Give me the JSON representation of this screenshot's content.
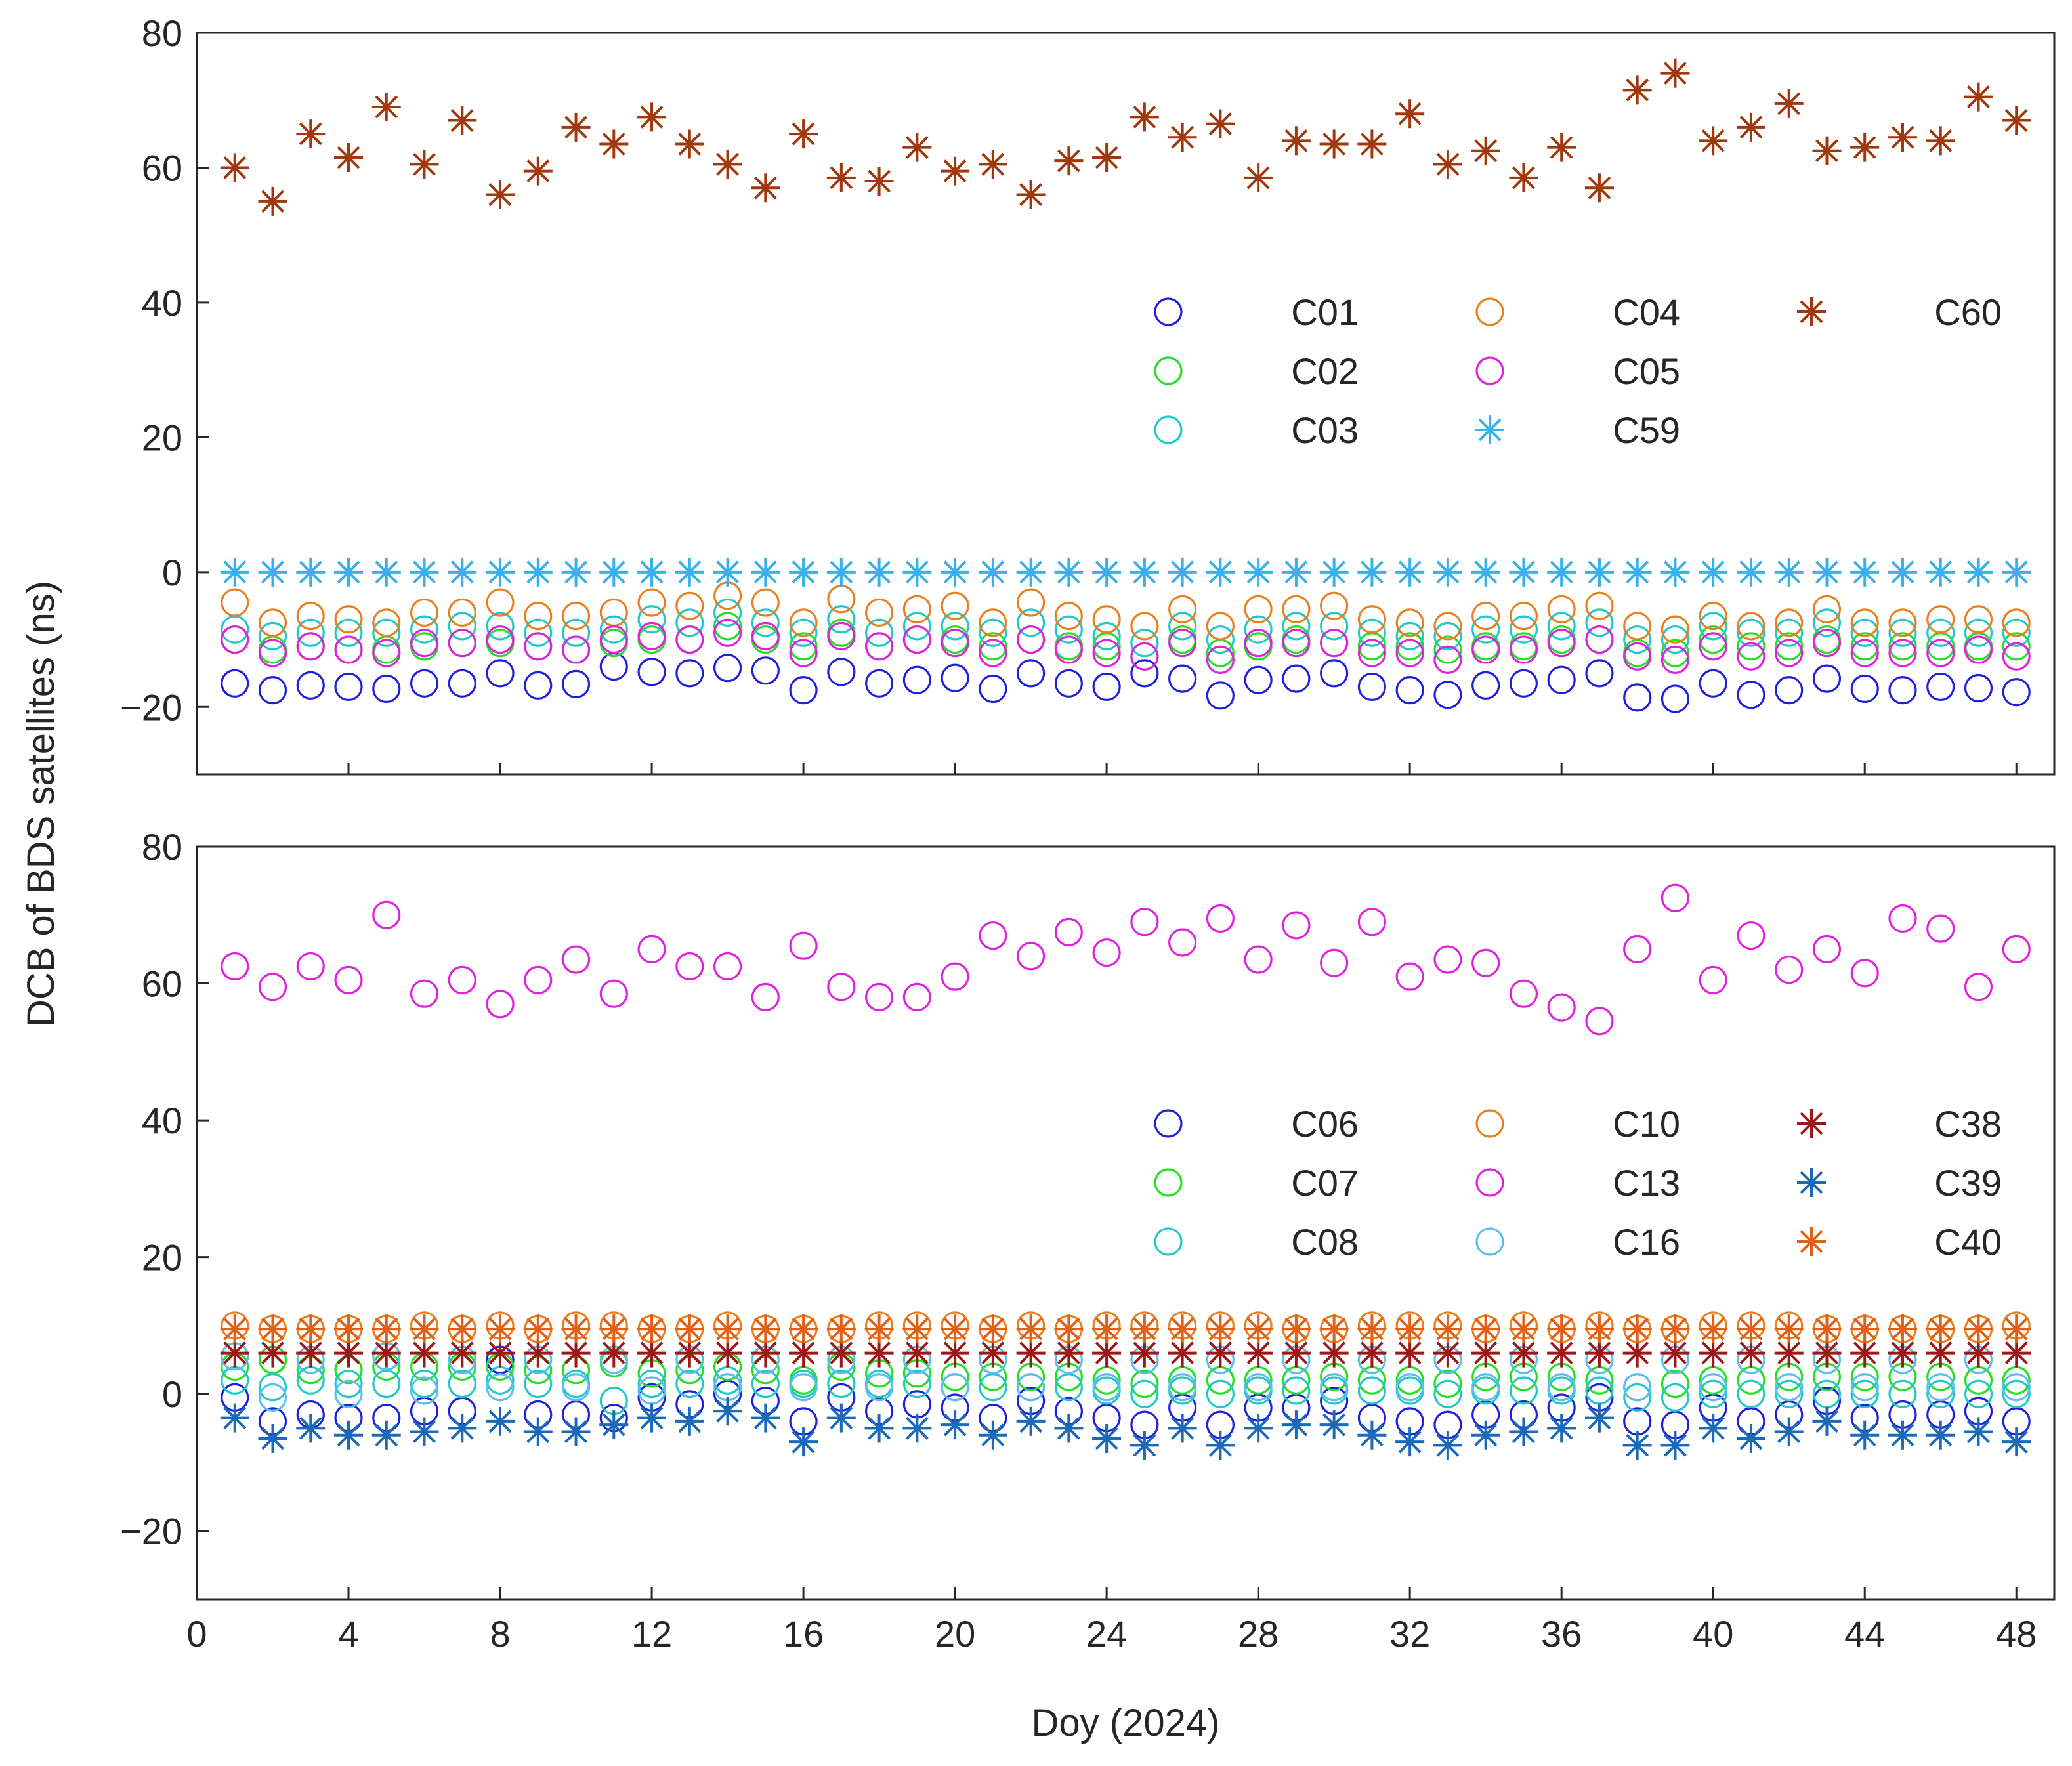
{
  "figure": {
    "ylabel": "DCB of BDS satellites (ns)",
    "xlabel": "Doy (2024)"
  },
  "chart_data": [
    {
      "type": "scatter",
      "panel": "top",
      "xlim": [
        0,
        49
      ],
      "ylim": [
        -30,
        80
      ],
      "xticks": [
        0,
        4,
        8,
        12,
        16,
        20,
        24,
        28,
        32,
        36,
        40,
        44,
        48
      ],
      "yticks": [
        -20,
        0,
        20,
        40,
        60,
        80
      ],
      "show_xtick_labels": false,
      "grid": false,
      "legend_position": "center-right",
      "x": [
        1,
        2,
        3,
        4,
        5,
        6,
        7,
        8,
        9,
        10,
        11,
        12,
        13,
        14,
        15,
        16,
        17,
        18,
        19,
        20,
        21,
        22,
        23,
        24,
        25,
        26,
        27,
        28,
        29,
        30,
        31,
        32,
        33,
        34,
        35,
        36,
        37,
        38,
        39,
        40,
        41,
        42,
        43,
        44,
        45,
        46,
        47,
        48
      ],
      "series": [
        {
          "name": "C01",
          "marker": "circle",
          "color": "#1f1fe0",
          "values": [
            -16.5,
            -17.5,
            -16.8,
            -17,
            -17.3,
            -16.5,
            -16.5,
            -15,
            -16.8,
            -16.6,
            -14,
            -14.8,
            -15,
            -14.2,
            -14.6,
            -17.5,
            -14.8,
            -16.5,
            -16,
            -15.7,
            -17.3,
            -15,
            -16.5,
            -17,
            -15,
            -15.8,
            -18.3,
            -16,
            -15.8,
            -15,
            -17,
            -17.5,
            -18.2,
            -16.8,
            -16.5,
            -16,
            -15,
            -18.6,
            -18.8,
            -16.5,
            -18.2,
            -17.5,
            -15.8,
            -17.3,
            -17.5,
            -17,
            -17.2,
            -17.8
          ]
        },
        {
          "name": "C02",
          "marker": "circle",
          "color": "#22e022",
          "values": [
            -10,
            -11.5,
            -11,
            -11.5,
            -11.5,
            -11,
            -10.5,
            -10.5,
            -11,
            -11.5,
            -10.5,
            -10,
            -10,
            -8,
            -10,
            -11,
            -9,
            -11,
            -10,
            -10,
            -11,
            -10,
            -11,
            -11,
            -12.5,
            -10,
            -12,
            -11,
            -10,
            -10.5,
            -11,
            -11,
            -11.5,
            -11,
            -11,
            -10,
            -10,
            -12,
            -12,
            -10,
            -11,
            -11,
            -10,
            -11,
            -11,
            -11,
            -11,
            -11
          ]
        },
        {
          "name": "C03",
          "marker": "circle",
          "color": "#20c8c8",
          "values": [
            -8.5,
            -9.5,
            -9,
            -9,
            -9,
            -8.5,
            -8,
            -8,
            -9,
            -9,
            -8.5,
            -7,
            -7.5,
            -6,
            -7.5,
            -9,
            -7,
            -9,
            -8,
            -8,
            -9,
            -7.5,
            -8.5,
            -9.5,
            -10.5,
            -8,
            -10,
            -8.5,
            -8,
            -8,
            -9,
            -9.5,
            -9.5,
            -8.5,
            -8.5,
            -8,
            -7.5,
            -10,
            -10,
            -8,
            -9,
            -9,
            -7.5,
            -9,
            -9,
            -9,
            -9,
            -9
          ]
        },
        {
          "name": "C04",
          "marker": "circle",
          "color": "#e88020",
          "values": [
            -4.5,
            -7.5,
            -6.5,
            -7,
            -7.5,
            -6,
            -6,
            -4.5,
            -6.5,
            -6.5,
            -6,
            -4.5,
            -5,
            -3.5,
            -4.5,
            -7.5,
            -4,
            -6,
            -5.5,
            -5,
            -7.5,
            -4.5,
            -6.5,
            -7,
            -8,
            -5.5,
            -8,
            -5.5,
            -5.5,
            -5,
            -7,
            -7.5,
            -8,
            -6.5,
            -6.5,
            -5.5,
            -5,
            -8,
            -8.5,
            -6.5,
            -8,
            -7.5,
            -5.5,
            -7.5,
            -7.5,
            -7,
            -7,
            -7.5
          ]
        },
        {
          "name": "C05",
          "marker": "circle",
          "color": "#e020e0",
          "values": [
            -10,
            -12,
            -11,
            -11.5,
            -12,
            -10.5,
            -10.5,
            -10,
            -11,
            -11.5,
            -10,
            -9.5,
            -10,
            -9,
            -9.5,
            -12,
            -9.5,
            -11,
            -10,
            -10.5,
            -12,
            -10,
            -11.5,
            -12,
            -12.5,
            -10.5,
            -13,
            -10.5,
            -10.5,
            -10.5,
            -12,
            -12,
            -13,
            -11.5,
            -11.5,
            -10.5,
            -10,
            -12.5,
            -13,
            -11,
            -12.5,
            -12,
            -10.5,
            -12,
            -12,
            -12,
            -11.5,
            -12.5
          ]
        },
        {
          "name": "C59",
          "marker": "star",
          "color": "#3ab0ea",
          "values": [
            0,
            0,
            0,
            0,
            0,
            0,
            0,
            0,
            0,
            0,
            0,
            0,
            0,
            0,
            0,
            0,
            0,
            0,
            0,
            0,
            0,
            0,
            0,
            0,
            0,
            0,
            0,
            0,
            0,
            0,
            0,
            0,
            0,
            0,
            0,
            0,
            0,
            0,
            0,
            0,
            0,
            0,
            0,
            0,
            0,
            0,
            0,
            0
          ]
        },
        {
          "name": "C60",
          "marker": "star",
          "color": "#a0380c",
          "values": [
            60,
            55,
            65,
            61.5,
            69,
            60.5,
            67,
            56,
            59.5,
            66,
            63.5,
            67.5,
            63.5,
            60.5,
            57,
            65,
            58.5,
            58,
            63,
            59.5,
            60.5,
            56,
            61,
            61.5,
            67.5,
            64.5,
            66.5,
            58.5,
            64,
            63.5,
            63.5,
            68,
            60.5,
            62.5,
            58.5,
            63,
            57,
            71.5,
            74,
            64,
            66,
            69.5,
            62.5,
            63,
            64.5,
            64,
            70.5,
            67
          ]
        }
      ]
    },
    {
      "type": "scatter",
      "panel": "bottom",
      "xlim": [
        0,
        49
      ],
      "ylim": [
        -30,
        80
      ],
      "xticks": [
        0,
        4,
        8,
        12,
        16,
        20,
        24,
        28,
        32,
        36,
        40,
        44,
        48
      ],
      "yticks": [
        -20,
        0,
        20,
        40,
        60,
        80
      ],
      "show_xtick_labels": true,
      "grid": false,
      "legend_position": "center-right",
      "x": [
        1,
        2,
        3,
        4,
        5,
        6,
        7,
        8,
        9,
        10,
        11,
        12,
        13,
        14,
        15,
        16,
        17,
        18,
        19,
        20,
        21,
        22,
        23,
        24,
        25,
        26,
        27,
        28,
        29,
        30,
        31,
        32,
        33,
        34,
        35,
        36,
        37,
        38,
        39,
        40,
        41,
        42,
        43,
        44,
        45,
        46,
        47,
        48
      ],
      "series": [
        {
          "name": "C06",
          "marker": "circle",
          "color": "#1f1fe0",
          "values": [
            -0.5,
            -4,
            -3,
            -3.5,
            -3.5,
            -2.5,
            -2.5,
            5,
            -3,
            -3,
            -3.5,
            -0.5,
            -1.5,
            0,
            -1,
            -4,
            -0.5,
            -2.5,
            -1.5,
            -2,
            -3.5,
            -1,
            -2.5,
            -3.5,
            -4.5,
            -2,
            -4.5,
            -2,
            -2,
            -1,
            -3.5,
            -4,
            -4.5,
            -3,
            -3,
            -2,
            -0.5,
            -4,
            -4.5,
            -2,
            -4,
            -3,
            -1,
            -3.5,
            -3,
            -3,
            -2.5,
            -4
          ]
        },
        {
          "name": "C07",
          "marker": "circle",
          "color": "#22e022",
          "values": [
            4,
            5,
            3.5,
            3.5,
            4,
            4,
            4,
            4,
            3.5,
            3.5,
            4.5,
            3,
            3.5,
            4,
            3.5,
            2,
            4,
            3,
            3,
            2.5,
            2.5,
            2.5,
            2.5,
            2,
            1.5,
            2,
            2,
            2,
            2,
            2.5,
            2,
            2,
            1.5,
            2.5,
            2.5,
            2.5,
            2,
            1,
            1.5,
            2,
            2,
            2.5,
            2.5,
            2.5,
            2.5,
            2.5,
            2,
            2
          ]
        },
        {
          "name": "C08",
          "marker": "circle",
          "color": "#20c8c8",
          "values": [
            2,
            1,
            2,
            1.5,
            1.5,
            1.5,
            1.5,
            2,
            1.5,
            1.5,
            -1,
            1.5,
            1.5,
            2,
            1.5,
            1.5,
            1.5,
            1.5,
            1.5,
            1,
            1,
            1,
            1,
            0.5,
            0,
            0.5,
            0,
            0.5,
            0.5,
            0.5,
            0.5,
            0.5,
            0,
            0.5,
            0.5,
            0.5,
            0.5,
            -0.5,
            -0.5,
            0,
            0,
            0,
            0,
            0,
            0,
            0,
            0,
            0
          ]
        },
        {
          "name": "C10",
          "marker": "circle",
          "color": "#e88020",
          "values": [
            10,
            9.5,
            9.5,
            9.5,
            9.5,
            10,
            9.5,
            10,
            9.5,
            10,
            10,
            9.5,
            9.5,
            10,
            9.5,
            9.5,
            9.5,
            10,
            10,
            10,
            9.5,
            10,
            9.5,
            10,
            10,
            10,
            10,
            10,
            9.5,
            9.5,
            10,
            10,
            10,
            9.5,
            10,
            9.5,
            10,
            9.5,
            9.5,
            10,
            10,
            10,
            9.5,
            9.5,
            9.5,
            9.5,
            9.5,
            10
          ]
        },
        {
          "name": "C13",
          "marker": "circle",
          "color": "#e020e0",
          "values": [
            62.5,
            59.5,
            62.5,
            60.5,
            70,
            58.5,
            60.5,
            57,
            60.5,
            63.5,
            58.5,
            65,
            62.5,
            62.5,
            58,
            65.5,
            59.5,
            58,
            58,
            61,
            67,
            64,
            67.5,
            64.5,
            69,
            66,
            69.5,
            63.5,
            68.5,
            63,
            69,
            61,
            63.5,
            63,
            58.5,
            56.5,
            54.5,
            65,
            72.5,
            60.5,
            67,
            62,
            65,
            61.5,
            69.5,
            68,
            59.5,
            65
          ]
        },
        {
          "name": "C16",
          "marker": "circle",
          "color": "#5bbdf0",
          "values": [
            5.5,
            -0.5,
            5,
            0,
            5.5,
            0.5,
            5,
            1,
            5,
            1,
            5,
            0.5,
            5,
            1,
            5,
            1,
            5,
            1,
            5,
            1,
            5,
            1,
            5,
            1,
            5,
            1,
            5,
            1,
            5,
            1,
            5,
            1,
            5,
            1,
            5,
            1,
            5,
            1,
            5,
            1,
            5,
            1,
            5,
            1,
            5,
            1,
            5,
            1
          ]
        },
        {
          "name": "C38",
          "marker": "star",
          "color": "#9c1818",
          "values": [
            6,
            6,
            6,
            6,
            6,
            6,
            6,
            6,
            6,
            6,
            6,
            6,
            6,
            6,
            6,
            6,
            6,
            6,
            6,
            6,
            6,
            6,
            6,
            6,
            6,
            6,
            6,
            6,
            6,
            6,
            6,
            6,
            6,
            6,
            6,
            6,
            6,
            6,
            6,
            6,
            6,
            6,
            6,
            6,
            6,
            6,
            6,
            6
          ]
        },
        {
          "name": "C39",
          "marker": "star",
          "color": "#1a6ab8",
          "values": [
            -3.5,
            -6.5,
            -5,
            -6,
            -6,
            -5.5,
            -5,
            -4,
            -5.5,
            -5.5,
            -4.5,
            -3.5,
            -4,
            -2.5,
            -3.5,
            -7,
            -3.5,
            -5,
            -5,
            -4.5,
            -6,
            -4,
            -5,
            -6.5,
            -7.5,
            -5,
            -7.5,
            -5,
            -4.5,
            -4.5,
            -6,
            -7,
            -7.5,
            -6,
            -5.5,
            -5,
            -3.5,
            -7.5,
            -7.5,
            -5,
            -6.5,
            -5.5,
            -4,
            -6,
            -6,
            -6,
            -5.5,
            -7
          ]
        },
        {
          "name": "C40",
          "marker": "star",
          "color": "#e06018",
          "values": [
            9.5,
            9.5,
            9.5,
            9.5,
            9.5,
            9.5,
            9.5,
            9.5,
            9.5,
            9.5,
            9.5,
            9.5,
            9.5,
            9.5,
            9.5,
            9.5,
            9.5,
            9.5,
            9.5,
            9.5,
            9.5,
            9.5,
            9.5,
            9.5,
            9.5,
            9.5,
            9.5,
            9.5,
            9.5,
            9.5,
            9.5,
            9.5,
            9.5,
            9.5,
            9.5,
            9.5,
            9.5,
            9.5,
            9.5,
            9.5,
            9.5,
            9.5,
            9.5,
            9.5,
            9.5,
            9.5,
            9.5,
            9.5
          ]
        }
      ]
    }
  ]
}
